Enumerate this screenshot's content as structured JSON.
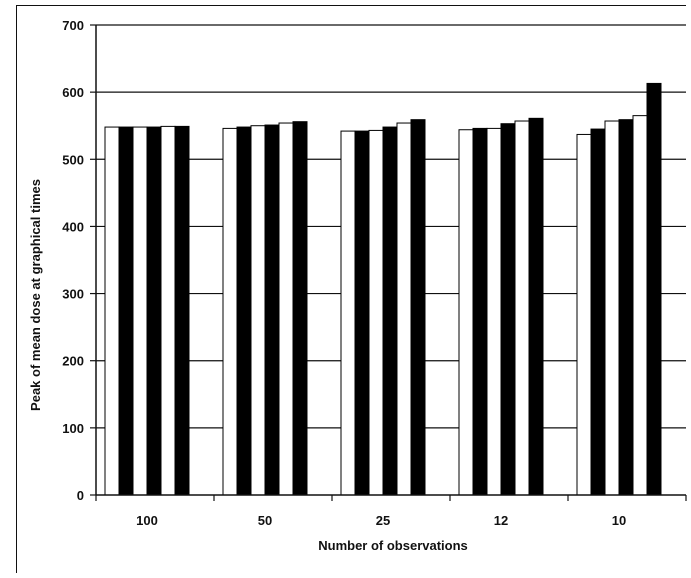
{
  "chart_data": {
    "type": "bar",
    "title": "",
    "xlabel": "Number of observations",
    "ylabel": "Peak of mean dose at graphical times",
    "categories": [
      "100",
      "50",
      "25",
      "12",
      "10"
    ],
    "ylim": [
      0,
      700
    ],
    "yticks": [
      0,
      100,
      200,
      300,
      400,
      500,
      600,
      700
    ],
    "grid": "horizontal",
    "legend": "none",
    "bar_colors": [
      "#ffffff",
      "#000000",
      "#ffffff",
      "#000000",
      "#ffffff",
      "#000000"
    ],
    "series": [
      {
        "values": [
          548,
          546,
          542,
          544,
          537
        ]
      },
      {
        "values": [
          548,
          548,
          542,
          546,
          545
        ]
      },
      {
        "values": [
          548,
          550,
          543,
          546,
          557
        ]
      },
      {
        "values": [
          548,
          551,
          548,
          553,
          559
        ]
      },
      {
        "values": [
          549,
          554,
          554,
          557,
          565
        ]
      },
      {
        "values": [
          549,
          556,
          559,
          561,
          613
        ]
      }
    ]
  }
}
